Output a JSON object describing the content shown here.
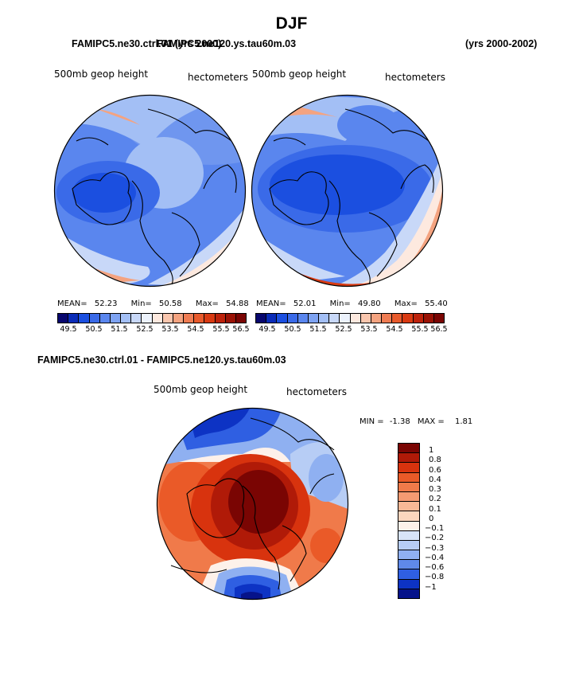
{
  "page": {
    "title": "DJF",
    "left_case_title": "FAMIPC5.ne30.ctrl.01 (yrs 2000)",
    "right_case_title": "FAMIPC5.ne120.ys.tau60m.03",
    "years_label": "(yrs 2000-2002)",
    "diff_title": "FAMIPC5.ne30.ctrl.01 - FAMIPC5.ne120.ys.tau60m.03"
  },
  "panels": [
    {
      "variable": "500mb geop height",
      "units": "hectometers",
      "stats": {
        "mean_label": "MEAN=",
        "mean": "52.23",
        "min_label": "Min=",
        "min": "50.58",
        "max_label": "Max=",
        "max": "54.88"
      }
    },
    {
      "variable": "500mb geop height",
      "units": "hectometers",
      "stats": {
        "mean_label": "MEAN=",
        "mean": "52.01",
        "min_label": "Min=",
        "min": "49.80",
        "max_label": "Max=",
        "max": "55.40"
      }
    }
  ],
  "diff_panel": {
    "variable": "500mb geop height",
    "units": "hectometers",
    "min_label": "MIN =",
    "min": "-1.38",
    "max_label": "MAX =",
    "max": "1.81"
  },
  "colorbar_top": {
    "labels": [
      "49.5",
      "50.5",
      "51.5",
      "52.5",
      "53.5",
      "54.5",
      "55.5",
      "56.5"
    ],
    "colors": [
      "#08076e",
      "#0a2cb8",
      "#1b4fe0",
      "#3a6ae8",
      "#5a86ee",
      "#7ea3f2",
      "#a3bff5",
      "#c8d8f8",
      "#ecf2fc",
      "#fde9df",
      "#f9c6ae",
      "#f4a380",
      "#ef7c53",
      "#e85a2c",
      "#d93a12",
      "#bd220b",
      "#9a1205",
      "#7a0503"
    ]
  },
  "colorbar_diff": {
    "labels": [
      "1",
      "0.8",
      "0.6",
      "0.4",
      "0.3",
      "0.2",
      "0.1",
      "0",
      "−0.1",
      "−0.2",
      "−0.3",
      "−0.4",
      "−0.6",
      "−0.8",
      "−1"
    ],
    "colors": [
      "#7a0503",
      "#b01a08",
      "#d8330e",
      "#ea5a28",
      "#f07a4a",
      "#f59a72",
      "#f8b896",
      "#fbd6be",
      "#fdf1ea",
      "#d8e4f8",
      "#b7cdf5",
      "#8fb0f1",
      "#5f89ea",
      "#2f5fe2",
      "#0d33c4",
      "#06138a"
    ]
  },
  "colors": {
    "deep_blue": "#1c46d8",
    "mid_blue": "#5a86ee",
    "light_blue": "#a3bff5",
    "pale": "#ecf2fc",
    "orange": "#ef7c53",
    "red": "#d93a12",
    "dark_red": "#8a0a04"
  }
}
